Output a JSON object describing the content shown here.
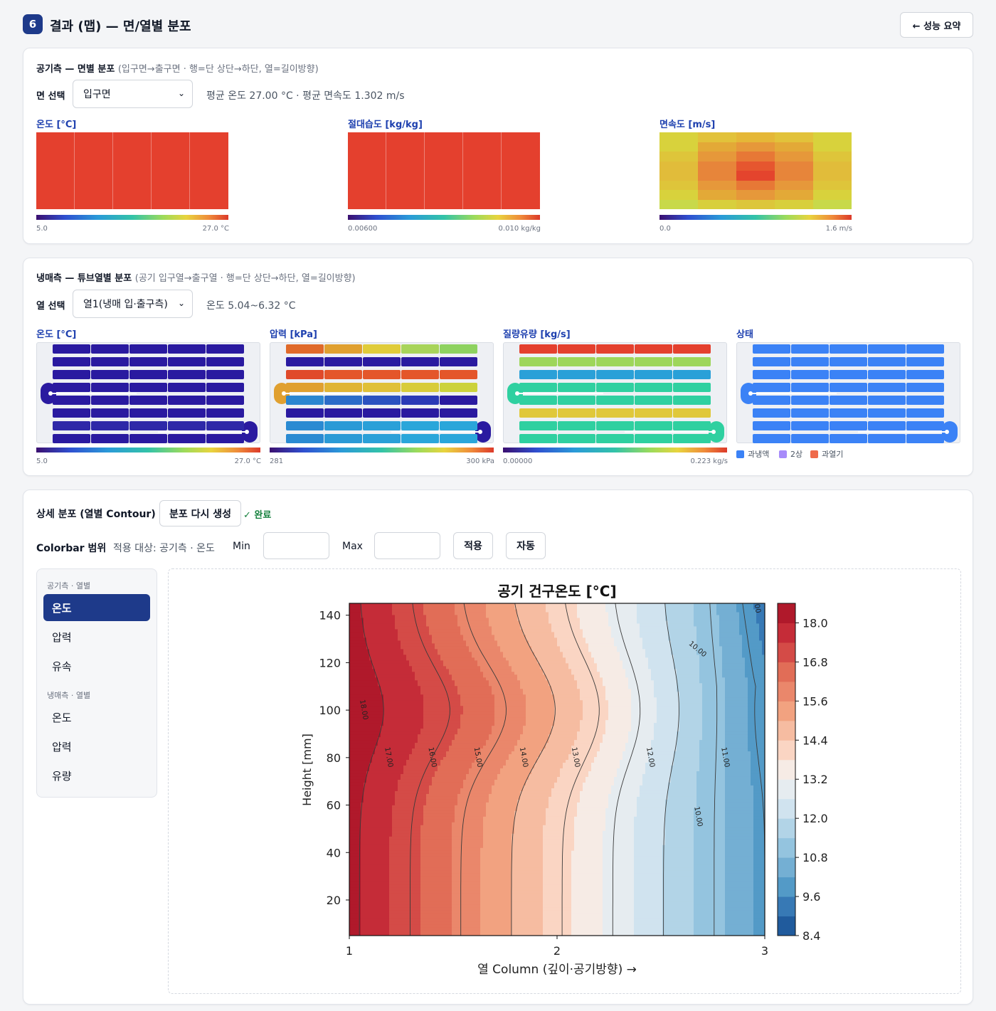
{
  "header": {
    "step": "6",
    "title": "결과 (맵) — 면/열별 분포",
    "back_label": "← 성능 요약"
  },
  "air_section": {
    "title": "공기측 — 면별 분포",
    "subtitle": "(입구면→출구면 · 행=단 상단→하단, 열=길이방향)",
    "select_label": "면 선택",
    "select_value": "입구면",
    "summary": "평균 온도 27.00 °C · 평균 면속도 1.302 m/s",
    "panels": [
      {
        "label": "온도 [°C]",
        "min": "5.0",
        "max": "27.0 °C",
        "rows": 8,
        "cols": 5,
        "uniform_color": "#e4402e"
      },
      {
        "label": "절대습도 [kg/kg]",
        "min": "0.00600",
        "max": "0.010 kg/kg",
        "rows": 8,
        "cols": 5,
        "uniform_color": "#e4402e"
      },
      {
        "label": "면속도 [m/s]",
        "min": "0.0",
        "max": "1.6 m/s",
        "rows": 8,
        "cols": 5,
        "colors": [
          [
            "#d8d23c",
            "#e2c23a",
            "#e5b737",
            "#e2c23a",
            "#d8d23c"
          ],
          [
            "#d8d23c",
            "#e3a937",
            "#e6983a",
            "#e3a937",
            "#d8d23c"
          ],
          [
            "#dec53a",
            "#e6983a",
            "#e77836",
            "#e6983a",
            "#dec53a"
          ],
          [
            "#e1bc3a",
            "#e7853a",
            "#e6562f",
            "#e7853a",
            "#e1bc3a"
          ],
          [
            "#e1bc3a",
            "#e7853a",
            "#e4442d",
            "#e7853a",
            "#e1bc3a"
          ],
          [
            "#dec53a",
            "#e6983a",
            "#e77836",
            "#e6983a",
            "#dec53a"
          ],
          [
            "#d8d23c",
            "#e3a937",
            "#e6983a",
            "#e3a937",
            "#d8d23c"
          ],
          [
            "#c8d94a",
            "#d8cf3c",
            "#dcc63a",
            "#d8cf3c",
            "#c8d94a"
          ]
        ]
      }
    ]
  },
  "ref_section": {
    "title": "냉매측 — 튜브열별 분포",
    "subtitle": "(공기 입구열→출구열 · 행=단 상단→하단, 열=길이방향)",
    "select_label": "열 선택",
    "select_value": "열1(냉매 입·출구측)",
    "summary": "온도 5.04~6.32 °C",
    "panels": [
      {
        "label": "온도 [°C]",
        "min": "5.0",
        "max": "27.0 °C",
        "row_colors": [
          "#2a1aa0",
          "#2a1aa0",
          "#2a1aa0",
          "#2a1aa0",
          "#2a1aa0",
          "#2a1aa0",
          "#2e28a8",
          "#2a1aa0"
        ],
        "bend_left": "#2a1aa0",
        "bend_right": "#2a1aa0"
      },
      {
        "label": "압력 [kPa]",
        "min": "281",
        "max": "300 kPa",
        "cell_colors": [
          [
            "#e06a2a",
            "#e0a030",
            "#e0cc3a",
            "#a8d45a",
            "#8ed260"
          ],
          [
            "#2a1aa0",
            "#2a1aa0",
            "#2a1aa0",
            "#2a1aa0",
            "#2a1aa0"
          ],
          [
            "#e04a2a",
            "#e4562a",
            "#e4562a",
            "#e4562a",
            "#e4562a"
          ],
          [
            "#e0a030",
            "#e0b434",
            "#e0c038",
            "#d8cc3a",
            "#ccd23c"
          ],
          [
            "#2b86d0",
            "#2b6cc8",
            "#2b52c0",
            "#2a3ab6",
            "#2a1aa0"
          ],
          [
            "#2a1aa0",
            "#2a1aa0",
            "#2a1aa0",
            "#2a1aa0",
            "#2a1aa0"
          ],
          [
            "#2a8ad2",
            "#2a9ad6",
            "#2aa0d8",
            "#2aa6da",
            "#2aa6da"
          ]
        ],
        "bend_left": "#e0a030",
        "bend_right": "#2a1aa0"
      },
      {
        "label": "질량유량 [kg/s]",
        "min": "0.00000",
        "max": "0.223 kg/s",
        "row_colors": [
          "#e4402e",
          "#9ed65a",
          "#2aa0d8",
          "#2fd0a0",
          "#2fd0a0",
          "#e0c83a",
          "#2fd0a0",
          "#2fd0a0"
        ],
        "bend_left": "#2fd0a0",
        "bend_right": "#2fd0a0"
      },
      {
        "label": "상태",
        "row_colors": [
          "#3b82f6",
          "#3b82f6",
          "#3b82f6",
          "#3b82f6",
          "#3b82f6",
          "#3b82f6",
          "#3b82f6",
          "#3b82f6"
        ],
        "bend_left": "#3b82f6",
        "bend_right": "#3b82f6"
      }
    ],
    "legend": [
      {
        "label": "과냉액",
        "color": "#3b82f6"
      },
      {
        "label": "2상",
        "color": "#a78bfa"
      },
      {
        "label": "과열기",
        "color": "#ef6a4a"
      }
    ]
  },
  "detail_section": {
    "title": "상세 분포 (열별 Contour)",
    "regen_label": "분포 다시 생성",
    "done_label": "✓ 완료",
    "colorbar_label": "Colorbar 범위",
    "target_text": "적용 대상: 공기측 · 온도",
    "min_label": "Min",
    "max_label": "Max",
    "min_value": "",
    "max_value": "",
    "apply_label": "적용",
    "auto_label": "자동",
    "sidebar": {
      "group1": "공기측 · 열별",
      "items1": [
        "온도",
        "압력",
        "유속"
      ],
      "group2": "냉매측 · 열별",
      "items2": [
        "온도",
        "압력",
        "유량"
      ]
    }
  },
  "chart_data": {
    "type": "contour",
    "title": "공기 건구온도 [°C]",
    "xlabel": "열 Column (깊이·공기방향) →",
    "ylabel": "Height [mm]",
    "xlim": [
      1,
      3
    ],
    "ylim": [
      5,
      145
    ],
    "x_ticks": [
      "1",
      "2",
      "3"
    ],
    "y_ticks": [
      "20",
      "40",
      "60",
      "80",
      "100",
      "120",
      "140"
    ],
    "colorbar_ticks": [
      "18.0",
      "16.8",
      "15.6",
      "14.4",
      "13.2",
      "12.0",
      "10.8",
      "9.6",
      "8.4"
    ],
    "colorbar_range": [
      8.4,
      18.6
    ],
    "level_step": 0.6,
    "contour_labels": [
      "18.00",
      "17.00",
      "16.00",
      "15.00",
      "14.00",
      "13.00",
      "12.00",
      "11.00",
      "10.00",
      "10.00",
      "10.00"
    ],
    "colormap": "RdBu_r"
  }
}
